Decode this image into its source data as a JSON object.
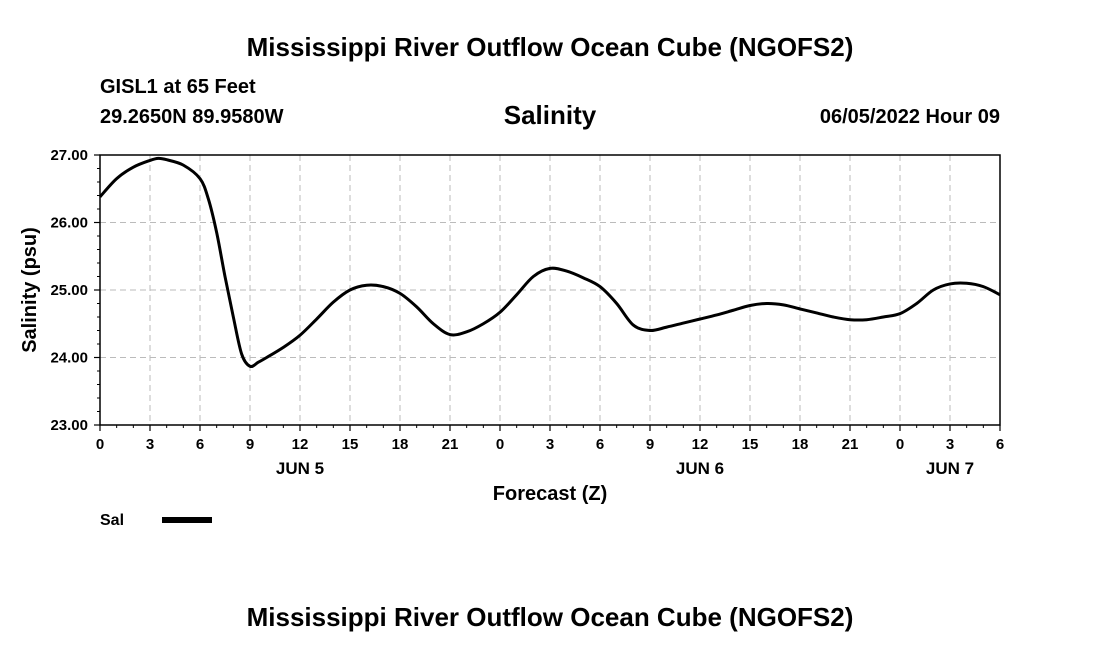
{
  "page": {
    "title": "Mississippi River Outflow Ocean Cube (NGOFS2)",
    "bottom_title": "Mississippi River Outflow Ocean Cube (NGOFS2)"
  },
  "station": {
    "name": "GISL1 at 65 Feet",
    "coords": "29.2650N  89.9580W",
    "datetime": "06/05/2022 Hour 09"
  },
  "legend": {
    "label": "Sal",
    "color": "#000000"
  },
  "chart_data": {
    "type": "line",
    "title": "Salinity",
    "xlabel": "Forecast (Z)",
    "ylabel": "Salinity (psu)",
    "xlim": [
      0,
      54
    ],
    "ylim": [
      23.0,
      27.0
    ],
    "grid": true,
    "x_tick_values": [
      0,
      3,
      6,
      9,
      12,
      15,
      18,
      21,
      24,
      27,
      30,
      33,
      36,
      39,
      42,
      45,
      48,
      51,
      54
    ],
    "x_tick_labels": [
      "0",
      "3",
      "6",
      "9",
      "12",
      "15",
      "18",
      "21",
      "0",
      "3",
      "6",
      "9",
      "12",
      "15",
      "18",
      "21",
      "0",
      "3",
      "6"
    ],
    "day_labels": [
      {
        "x": 12,
        "label": "JUN 5"
      },
      {
        "x": 36,
        "label": "JUN 6"
      },
      {
        "x": 51,
        "label": "JUN 7"
      }
    ],
    "y_tick_values": [
      23.0,
      24.0,
      25.0,
      26.0,
      27.0
    ],
    "y_tick_labels": [
      "23.00",
      "24.00",
      "25.00",
      "26.00",
      "27.00"
    ],
    "series": [
      {
        "name": "Sal",
        "color": "#000000",
        "x": [
          0,
          1,
          2,
          3,
          3.5,
          4,
          5,
          6,
          6.5,
          7,
          7.5,
          8,
          8.5,
          9,
          9.5,
          10,
          11,
          12,
          13,
          14,
          15,
          16,
          17,
          18,
          19,
          20,
          21,
          22,
          23,
          24,
          25,
          26,
          27,
          28,
          29,
          30,
          31,
          32,
          33,
          34,
          35,
          36,
          37,
          38,
          39,
          40,
          41,
          42,
          43,
          44,
          45,
          46,
          47,
          48,
          49,
          50,
          51,
          52,
          53,
          54
        ],
        "values": [
          26.38,
          26.65,
          26.82,
          26.92,
          26.95,
          26.93,
          26.85,
          26.65,
          26.35,
          25.85,
          25.2,
          24.6,
          24.05,
          23.87,
          23.93,
          24.0,
          24.15,
          24.33,
          24.57,
          24.82,
          25.0,
          25.07,
          25.05,
          24.95,
          24.75,
          24.5,
          24.34,
          24.38,
          24.5,
          24.67,
          24.93,
          25.2,
          25.32,
          25.28,
          25.18,
          25.05,
          24.8,
          24.48,
          24.4,
          24.45,
          24.51,
          24.57,
          24.63,
          24.7,
          24.77,
          24.8,
          24.78,
          24.72,
          24.66,
          24.6,
          24.56,
          24.56,
          24.6,
          24.65,
          24.8,
          25.0,
          25.09,
          25.1,
          25.05,
          24.93
        ]
      }
    ]
  }
}
